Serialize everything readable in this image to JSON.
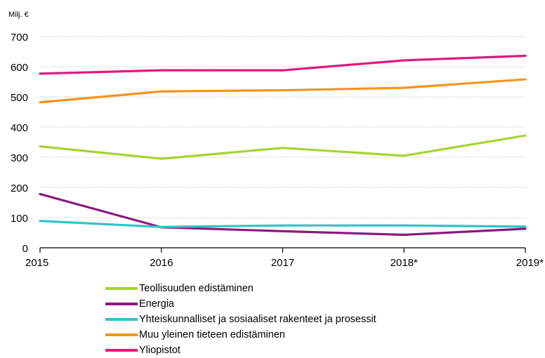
{
  "chart_data": {
    "type": "line",
    "unit_label": "Milj. €",
    "x": [
      "2015",
      "2016",
      "2017",
      "2018*",
      "2019*"
    ],
    "ylim": [
      0,
      700
    ],
    "yticks": [
      0,
      100,
      200,
      300,
      400,
      500,
      600,
      700
    ],
    "grid": true,
    "legend_position": "bottom",
    "series": [
      {
        "name": "Teollisuuden edistäminen",
        "color": "#a6d335",
        "values": [
          336,
          295,
          331,
          305,
          372
        ]
      },
      {
        "name": "Energia",
        "color": "#8b1a7c",
        "values": [
          178,
          68,
          55,
          43,
          63
        ]
      },
      {
        "name": "Yhteiskunnalliset ja sosiaaliset rakenteet ja prosessit",
        "color": "#2ec5c5",
        "values": [
          89,
          69,
          74,
          74,
          70
        ]
      },
      {
        "name": "Muu yleinen tieteen edistäminen",
        "color": "#f7941d",
        "values": [
          482,
          518,
          522,
          530,
          558
        ]
      },
      {
        "name": "Yliopistot",
        "color": "#e0197d",
        "values": [
          577,
          588,
          588,
          621,
          636
        ]
      }
    ]
  }
}
